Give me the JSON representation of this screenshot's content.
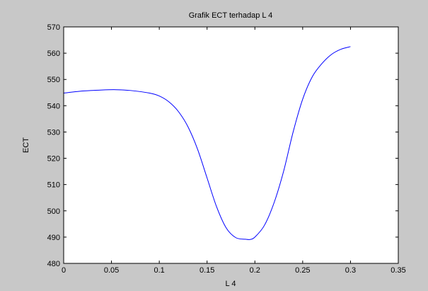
{
  "chart_data": {
    "type": "line",
    "title": "Grafik ECT terhadap L 4",
    "xlabel": "L 4",
    "ylabel": "ECT",
    "xlim": [
      0,
      0.35
    ],
    "ylim": [
      480,
      570
    ],
    "xticks": [
      0,
      0.05,
      0.1,
      0.15,
      0.2,
      0.25,
      0.3,
      0.35
    ],
    "xtick_labels": [
      "0",
      "0.05",
      "0.1",
      "0.15",
      "0.2",
      "0.25",
      "0.3",
      "0.35"
    ],
    "yticks": [
      480,
      490,
      500,
      510,
      520,
      530,
      540,
      550,
      560,
      570
    ],
    "ytick_labels": [
      "480",
      "490",
      "500",
      "510",
      "520",
      "530",
      "540",
      "550",
      "560",
      "570"
    ],
    "grid": false,
    "series": [
      {
        "color": "#0000ff",
        "x": [
          0,
          0.02,
          0.04,
          0.055,
          0.07,
          0.09,
          0.1,
          0.11,
          0.12,
          0.13,
          0.14,
          0.15,
          0.16,
          0.17,
          0.18,
          0.19,
          0.195,
          0.2,
          0.21,
          0.22,
          0.23,
          0.24,
          0.25,
          0.26,
          0.27,
          0.28,
          0.29,
          0.3
        ],
        "y": [
          544.8,
          545.6,
          546.0,
          546.1,
          545.8,
          544.8,
          543.7,
          541.5,
          537.8,
          532.0,
          523.5,
          512.5,
          501.5,
          493.5,
          489.8,
          489.2,
          489.1,
          490.0,
          494.5,
          503.0,
          515.0,
          530.0,
          542.5,
          551.0,
          556.0,
          559.5,
          561.5,
          562.5
        ]
      }
    ]
  }
}
